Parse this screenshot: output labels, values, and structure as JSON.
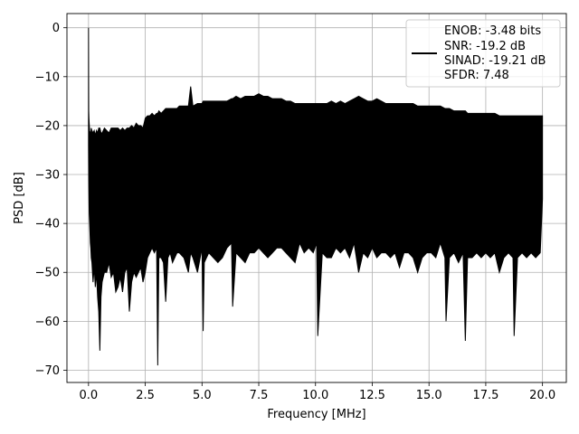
{
  "chart_data": {
    "type": "line",
    "title": "",
    "xlabel": "Frequency [MHz]",
    "ylabel": "PSD [dB]",
    "xlim": [
      -0.95,
      21.05
    ],
    "ylim": [
      -72.5,
      2.9
    ],
    "xticks": [
      0.0,
      2.5,
      5.0,
      7.5,
      10.0,
      12.5,
      15.0,
      17.5,
      20.0
    ],
    "xtick_labels": [
      "0.0",
      "2.5",
      "5.0",
      "7.5",
      "10.0",
      "12.5",
      "15.0",
      "17.5",
      "20.0"
    ],
    "yticks": [
      0,
      -10,
      -20,
      -30,
      -40,
      -50,
      -60,
      -70
    ],
    "ytick_labels": [
      "0",
      "−10",
      "−20",
      "−30",
      "−40",
      "−50",
      "−60",
      "−70"
    ],
    "grid": true,
    "line_color": "#000000",
    "legend": {
      "placement": "top-right",
      "entries": [
        "ENOB: -3.48 bits",
        "SNR: -19.2 dB",
        "SINAD: -19.21 dB",
        "SFDR: 7.48"
      ]
    },
    "series": [
      {
        "x": [
          0.0,
          0.01,
          0.02,
          0.03,
          0.05,
          0.08,
          0.1,
          0.12,
          0.15,
          0.2,
          0.25,
          0.3,
          0.35,
          0.4,
          0.45,
          0.5,
          0.55,
          0.6,
          0.7,
          0.8,
          0.9,
          1.0,
          1.1,
          1.2,
          1.3,
          1.4,
          1.5,
          1.6,
          1.7,
          1.8,
          1.9,
          2.0,
          2.1,
          2.2,
          2.3,
          2.4,
          2.5,
          2.6,
          2.7,
          2.8,
          2.9,
          3.0,
          3.05,
          3.1,
          3.2,
          3.3,
          3.4,
          3.5,
          3.6,
          3.7,
          3.8,
          3.9,
          4.0,
          4.2,
          4.4,
          4.5,
          4.6,
          4.8,
          5.0,
          5.05,
          5.1,
          5.3,
          5.5,
          5.7,
          5.9,
          6.1,
          6.3,
          6.35,
          6.5,
          6.7,
          6.9,
          7.1,
          7.3,
          7.5,
          7.7,
          7.9,
          8.1,
          8.3,
          8.5,
          8.7,
          8.9,
          9.1,
          9.3,
          9.5,
          9.7,
          9.9,
          10.05,
          10.1,
          10.3,
          10.5,
          10.7,
          10.9,
          11.1,
          11.3,
          11.5,
          11.7,
          11.9,
          12.1,
          12.3,
          12.5,
          12.7,
          12.9,
          13.1,
          13.3,
          13.5,
          13.7,
          13.9,
          14.1,
          14.3,
          14.5,
          14.7,
          14.9,
          15.1,
          15.3,
          15.5,
          15.7,
          15.75,
          15.9,
          16.1,
          16.3,
          16.5,
          16.6,
          16.7,
          16.9,
          17.1,
          17.3,
          17.5,
          17.7,
          17.9,
          18.1,
          18.3,
          18.5,
          18.7,
          18.75,
          18.9,
          19.1,
          19.3,
          19.5,
          19.7,
          19.9,
          20.0
        ],
        "upper": [
          0.0,
          -17.0,
          -18.5,
          -19.5,
          -21.0,
          -21.5,
          -22.0,
          -20.5,
          -21.0,
          -21.5,
          -21.0,
          -22.0,
          -21.0,
          -21.5,
          -20.5,
          -20.5,
          -21.5,
          -21.5,
          -20.5,
          -21.0,
          -21.5,
          -20.5,
          -20.5,
          -20.5,
          -20.5,
          -21.0,
          -20.5,
          -21.0,
          -20.5,
          -20.5,
          -20.0,
          -20.5,
          -19.5,
          -20.0,
          -20.0,
          -20.5,
          -18.5,
          -18.0,
          -18.0,
          -17.5,
          -18.0,
          -17.5,
          -17.5,
          -17.0,
          -17.5,
          -17.0,
          -16.5,
          -16.5,
          -16.5,
          -16.5,
          -16.5,
          -16.5,
          -16.0,
          -16.0,
          -16.0,
          -12.0,
          -16.0,
          -15.5,
          -15.5,
          -15.0,
          -15.0,
          -15.0,
          -15.0,
          -15.0,
          -15.0,
          -15.0,
          -14.5,
          -14.5,
          -14.0,
          -14.5,
          -14.0,
          -14.0,
          -14.0,
          -13.5,
          -14.0,
          -14.0,
          -14.5,
          -14.5,
          -14.5,
          -15.0,
          -15.0,
          -15.5,
          -15.5,
          -15.5,
          -15.5,
          -15.5,
          -15.5,
          -15.5,
          -15.5,
          -15.5,
          -15.0,
          -15.5,
          -15.0,
          -15.5,
          -15.0,
          -14.5,
          -14.0,
          -14.5,
          -15.0,
          -15.0,
          -14.5,
          -15.0,
          -15.5,
          -15.5,
          -15.5,
          -15.5,
          -15.5,
          -15.5,
          -15.5,
          -16.0,
          -16.0,
          -16.0,
          -16.0,
          -16.0,
          -16.0,
          -16.5,
          -16.5,
          -16.5,
          -17.0,
          -17.0,
          -17.0,
          -17.0,
          -17.5,
          -17.5,
          -17.5,
          -17.5,
          -17.5,
          -17.5,
          -17.5,
          -18.0,
          -18.0,
          -18.0,
          -18.0,
          -18.0,
          -18.0,
          -18.0,
          -18.0,
          -18.0,
          -18.0,
          -18.0,
          -18.0
        ],
        "lower": [
          -24.0,
          -31.5,
          -35.0,
          -38.0,
          -40.0,
          -44.0,
          -45.0,
          -47.0,
          -48.0,
          -52.0,
          -49.0,
          -53.0,
          -50.0,
          -55.0,
          -58.0,
          -66.0,
          -55.0,
          -52.0,
          -50.0,
          -50.0,
          -48.0,
          -51.0,
          -50.0,
          -54.0,
          -53.0,
          -51.0,
          -54.0,
          -50.0,
          -49.0,
          -58.0,
          -52.0,
          -50.0,
          -51.0,
          -50.0,
          -49.0,
          -52.0,
          -50.0,
          -47.0,
          -46.0,
          -45.0,
          -46.0,
          -45.0,
          -69.0,
          -47.0,
          -47.0,
          -48.0,
          -56.0,
          -47.0,
          -46.0,
          -48.0,
          -47.0,
          -46.0,
          -46.0,
          -47.0,
          -50.0,
          -46.0,
          -47.0,
          -50.0,
          -45.0,
          -62.0,
          -48.0,
          -46.0,
          -47.0,
          -48.0,
          -47.0,
          -45.0,
          -44.0,
          -57.0,
          -46.0,
          -47.0,
          -48.0,
          -46.0,
          -46.0,
          -45.0,
          -46.0,
          -47.0,
          -46.0,
          -45.0,
          -45.0,
          -46.0,
          -47.0,
          -48.0,
          -44.0,
          -46.0,
          -45.0,
          -46.0,
          -44.0,
          -63.0,
          -46.0,
          -47.0,
          -47.0,
          -45.0,
          -46.0,
          -45.0,
          -47.0,
          -44.0,
          -50.0,
          -46.0,
          -47.0,
          -45.0,
          -47.0,
          -46.0,
          -46.0,
          -47.0,
          -46.0,
          -49.0,
          -46.0,
          -46.0,
          -47.0,
          -50.0,
          -47.0,
          -46.0,
          -46.0,
          -47.0,
          -44.0,
          -47.0,
          -60.0,
          -47.0,
          -46.0,
          -48.0,
          -46.0,
          -64.0,
          -47.0,
          -47.0,
          -46.0,
          -47.0,
          -46.0,
          -47.0,
          -46.0,
          -50.0,
          -47.0,
          -46.0,
          -47.0,
          -63.0,
          -47.0,
          -46.0,
          -47.0,
          -46.0,
          -47.0,
          -46.0,
          -35.0
        ]
      }
    ]
  }
}
